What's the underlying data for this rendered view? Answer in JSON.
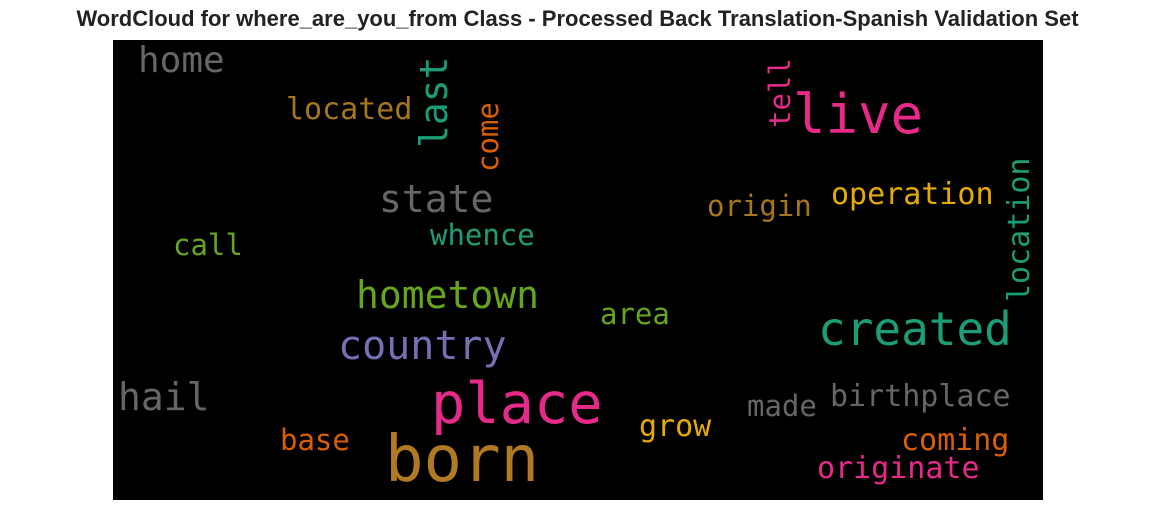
{
  "title": "WordCloud for where_are_you_from Class - Processed Back Translation-Spanish Validation Set",
  "words": [
    {
      "text": "born",
      "color": "#b07a22"
    },
    {
      "text": "place",
      "color": "#e7298a"
    },
    {
      "text": "live",
      "color": "#e7298a"
    },
    {
      "text": "created",
      "color": "#1b9e77"
    },
    {
      "text": "country",
      "color": "#7570b3"
    },
    {
      "text": "hometown",
      "color": "#66a61e"
    },
    {
      "text": "state",
      "color": "#666666"
    },
    {
      "text": "home",
      "color": "#666666"
    },
    {
      "text": "hail",
      "color": "#666666"
    },
    {
      "text": "last",
      "color": "#1b9e77"
    },
    {
      "text": "location",
      "color": "#1b9e77"
    },
    {
      "text": "located",
      "color": "#a6761d"
    },
    {
      "text": "come",
      "color": "#d95f02"
    },
    {
      "text": "tell",
      "color": "#e7298a"
    },
    {
      "text": "operation",
      "color": "#e6ab02"
    },
    {
      "text": "origin",
      "color": "#a6761d"
    },
    {
      "text": "whence",
      "color": "#1b9e77"
    },
    {
      "text": "call",
      "color": "#66a61e"
    },
    {
      "text": "area",
      "color": "#66a61e"
    },
    {
      "text": "birthplace",
      "color": "#666666"
    },
    {
      "text": "made",
      "color": "#666666"
    },
    {
      "text": "grow",
      "color": "#e6ab02"
    },
    {
      "text": "coming",
      "color": "#d95f02"
    },
    {
      "text": "originate",
      "color": "#e7298a"
    },
    {
      "text": "base",
      "color": "#d95f02"
    }
  ]
}
